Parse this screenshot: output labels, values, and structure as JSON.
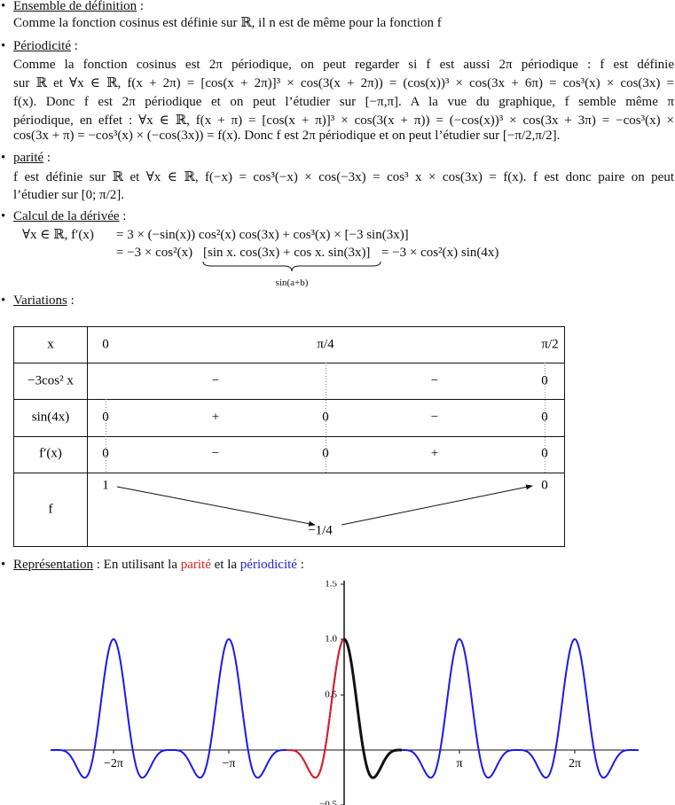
{
  "sections": [
    {
      "title": "Ensemble de définition",
      "lines": [
        "Comme la fonction cosinus est définie sur ℝ, il n est de même pour la fonction f"
      ]
    },
    {
      "title": "Périodicité",
      "lines": [
        "Comme la fonction cosinus est 2π périodique, on peut regarder si f est aussi 2π périodique : f est définie",
        "sur ℝ et ∀x ∈ ℝ, f(x + 2π) = [cos(x + 2π)]³ × cos(3(x + 2π)) = (cos(x))³ × cos(3x + 6π) = cos³(x) × cos(3x) =",
        "f(x). Donc f est 2π périodique et on peut l’étudier sur [−π,π]. A la vue du graphique, f semble même π",
        "périodique, en effet : ∀x ∈ ℝ, f(x + π) = [cos(x + π)]³ × cos(3(x + π)) = (−cos(x))³ × cos(3x + 3π) = −cos³(x) ×",
        "cos(3x + π) = −cos³(x) × (−cos(3x)) = f(x). Donc f est 2π périodique et on peut l’étudier sur [−π/2,π/2]."
      ]
    },
    {
      "title": "parité",
      "lines": [
        "f est définie sur ℝ et ∀x ∈ ℝ,  f(−x) = cos³(−x) × cos(−3x) = cos³ x × cos(3x) = f(x). f est donc paire on peut",
        "l’étudier sur [0; π/2]."
      ]
    },
    {
      "title": "Calcul de la dérivée",
      "derivative": {
        "lhs": "∀x ∈ ℝ,  f′(x)",
        "line1": "= 3 × (−sin(x)) cos²(x) cos(3x) + cos³(x) × [−3 sin(3x)]",
        "line2_start": "= −3 × cos²(x)",
        "line2_brace": "[sin x. cos(3x) + cos x. sin(3x)]",
        "line2_end": "= −3 × cos²(x) sin(4x)",
        "brace_label": "sin(a+b)"
      }
    },
    {
      "title": "Variations",
      "table": {
        "header": [
          "x",
          "0",
          "π/4",
          "π/2"
        ],
        "rows": [
          {
            "label": "−3cos² x",
            "cells": [
              "−",
              "−",
              "0"
            ]
          },
          {
            "label": "sin(4x)",
            "cells": [
              "0",
              "+",
              "0",
              "−",
              "0"
            ]
          },
          {
            "label": "f′(x)",
            "cells": [
              "0",
              "−",
              "0",
              "+",
              "0"
            ]
          },
          {
            "label": "f",
            "cells": [
              "1",
              "−1/4",
              "0"
            ]
          }
        ]
      }
    },
    {
      "title": "Représentation",
      "intro": [
        " : En utilisant la ",
        "parité",
        " et la ",
        "périodicité",
        " :"
      ]
    }
  ],
  "figure": {
    "yticks": [
      "1.5",
      "1.0",
      "0.5",
      "−0.5"
    ],
    "xticks": [
      "−2π",
      "−π",
      "π",
      "2π"
    ]
  }
}
